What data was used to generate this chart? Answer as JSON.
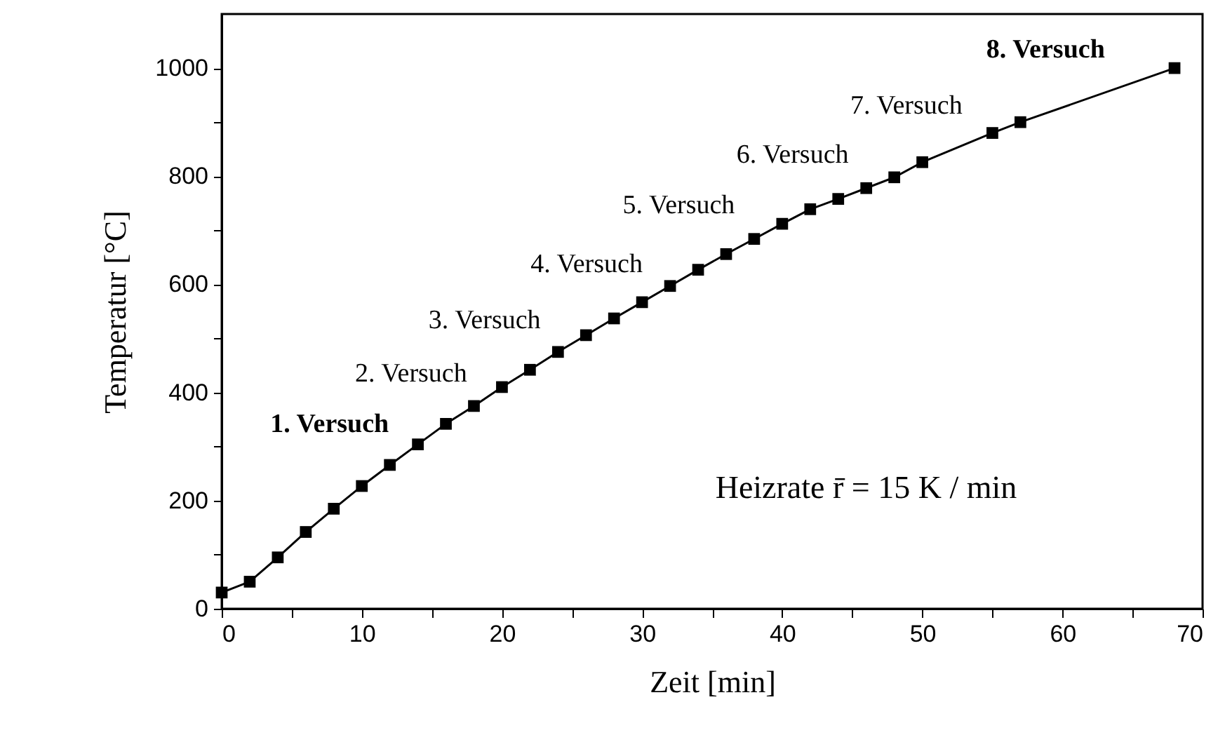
{
  "chart_data": {
    "type": "line",
    "xlabel": "Zeit [min]",
    "ylabel": "Temperatur [°C]",
    "x": [
      0,
      2,
      4,
      6,
      8,
      10,
      12,
      14,
      16,
      18,
      20,
      22,
      24,
      26,
      28,
      30,
      32,
      34,
      36,
      38,
      40,
      42,
      44,
      46,
      48,
      50,
      55,
      57,
      68
    ],
    "series": [
      {
        "color": "#000000",
        "values": [
          30,
          50,
          95,
          142,
          185,
          227,
          266,
          304,
          342,
          375,
          410,
          442,
          475,
          506,
          537,
          567,
          597,
          627,
          656,
          684,
          712,
          739,
          758,
          778,
          798,
          826,
          880,
          900,
          1000
        ]
      }
    ],
    "marker": "square",
    "line_style": "solid",
    "grid": false,
    "xlim": [
      0,
      70
    ],
    "ylim": [
      0,
      1100
    ],
    "xticks": [
      0,
      {
        "value": 5,
        "label": null
      },
      10,
      {
        "value": 15,
        "label": null
      },
      20,
      {
        "value": 25,
        "label": null
      },
      30,
      {
        "value": 35,
        "label": null
      },
      40,
      {
        "value": 45,
        "label": null
      },
      50,
      {
        "value": 55,
        "label": null
      },
      60,
      {
        "value": 65,
        "label": null
      },
      70
    ],
    "yticks": [
      0,
      {
        "value": 100,
        "label": null
      },
      200,
      {
        "value": 300,
        "label": null
      },
      400,
      {
        "value": 500,
        "label": null
      },
      600,
      {
        "value": 700,
        "label": null
      },
      800,
      {
        "value": 900,
        "label": null
      },
      1000
    ],
    "annotations": [
      "1. Versuch",
      "2. Versuch",
      "3. Versuch",
      "4. Versuch",
      "5. Versuch",
      "6. Versuch",
      "7. Versuch",
      "8. Versuch",
      "Heizrate r̄ = 15 K / min"
    ]
  }
}
